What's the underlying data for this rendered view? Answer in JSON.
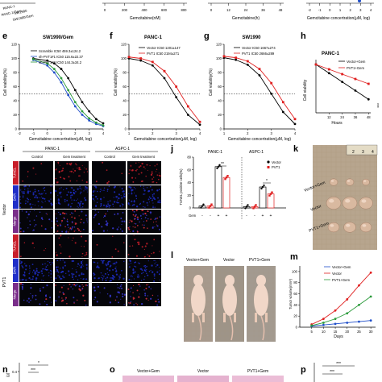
{
  "top_strip": {
    "legend_items": [
      "PANC-1",
      "PANC-1/Gem",
      "SW1990",
      "SW1990/Gem"
    ],
    "xlabel_b": "Gemcitabine(nM)",
    "ticks_b": [
      "0",
      "200",
      "400",
      "600",
      "800"
    ],
    "xlabel_c": "Gemcitabine(h)",
    "ticks_c": [
      "0",
      "12",
      "24",
      "36",
      "48"
    ],
    "xlabel_d": "Gemcitabine concertration(μM, log)",
    "ticks_d": [
      "-2",
      "-1",
      "0",
      "1",
      "2",
      "3",
      "4"
    ]
  },
  "panel_e": {
    "label": "e",
    "title": "SW1990/Gem",
    "ylabel": "Cell viability(%)",
    "xlabel": "Gemcitabine concertration(μM, log)",
    "legend": [
      "Scramble  IC50 459.3±124.2",
      "sh-PVT1#1  IC50 115.6±22.37",
      "sh-PVT1#2  IC50 144.3±34.2"
    ],
    "yticks": [
      "0",
      "20",
      "40",
      "60",
      "80",
      "100",
      "120"
    ],
    "xticks": [
      "-2",
      "-1",
      "0",
      "1",
      "2",
      "3",
      "4"
    ]
  },
  "panel_f": {
    "label": "f",
    "title": "PANC-1",
    "ylabel": "Cell viability(%)",
    "xlabel": "Gemcitabine concertration(μM, log)",
    "legend": [
      "Vector  IC50 1201±147",
      "PVT1  IC50 2194±271"
    ],
    "yticks": [
      "0",
      "20",
      "40",
      "60",
      "80",
      "100",
      "120"
    ],
    "xticks": [
      "1",
      "2",
      "3",
      "4"
    ]
  },
  "panel_g": {
    "label": "g",
    "title": "SW1990",
    "ylabel": "Cell viability(%)",
    "xlabel": "Gemcitabine concertration(μM, log)",
    "legend": [
      "Vector  IC50 1667±274",
      "PVT1  IC50 2666±289"
    ],
    "yticks": [
      "0",
      "20",
      "40",
      "60",
      "80",
      "100",
      "120"
    ],
    "xticks": [
      "1",
      "2",
      "3",
      "4"
    ]
  },
  "panel_h": {
    "label": "h",
    "title": "PANC-1",
    "ylabel": "Cell viability",
    "xlabel": "Hours",
    "legend": [
      "Vector+Gem",
      "PVT1+Gem"
    ],
    "xticks": [
      "12",
      "24",
      "36",
      "48"
    ],
    "sig": "***"
  },
  "panel_i": {
    "label": "i",
    "groups": [
      "PANC-1",
      "ASPC-1"
    ],
    "cols": [
      "Control",
      "Gem treatment",
      "Control",
      "Gem treatment"
    ],
    "rows": [
      "Vector",
      "PVT1"
    ],
    "channels": [
      "TUNEL",
      "DAPI",
      "Merge"
    ],
    "scale": "100μm"
  },
  "panel_j": {
    "label": "j",
    "ylabel": "TUNEL positive cells(%)",
    "groups": [
      "PANC-1",
      "ASPC-1"
    ],
    "legend": [
      "Vector",
      "PVT1"
    ],
    "row_label": "Gem",
    "signs": [
      "-",
      "-",
      "+",
      "+",
      "-",
      "-",
      "+",
      "+"
    ],
    "yticks": [
      "0",
      "20",
      "40",
      "60",
      "80"
    ],
    "sig1": "**",
    "sig2": "*"
  },
  "panel_k": {
    "label": "k",
    "rows": [
      "Vector+Gem",
      "Vector",
      "PVT1+Gem"
    ],
    "ruler": [
      "2",
      "3",
      "4"
    ]
  },
  "panel_l": {
    "label": "l",
    "cols": [
      "Vector+Gem",
      "Vector",
      "PVT1+Gem"
    ]
  },
  "panel_m": {
    "label": "m",
    "ylabel": "Tumor volume(mm³)",
    "xlabel": "Days",
    "legend": [
      "Vector+Gem",
      "Vector",
      "PVT1+Gem"
    ],
    "xticks": [
      "5",
      "10",
      "15",
      "20",
      "25",
      "30"
    ],
    "yticks": [
      "0",
      "20",
      "40",
      "60",
      "80",
      "100"
    ]
  },
  "bottom_strip": {
    "label_n": "n",
    "label_o": "o",
    "label_p": "p",
    "o_cols": [
      "Vector+Gem",
      "Vector",
      "PVT1+Gem"
    ],
    "n_sig": [
      "*",
      "***"
    ],
    "p_sig": [
      "***",
      "***"
    ],
    "n_yaxis": "(g)",
    "n_ytick": "0.4"
  },
  "chart_data": [
    {
      "type": "line",
      "panel": "e",
      "x": [
        -1,
        0,
        0.5,
        1,
        1.5,
        2,
        2.5,
        3,
        3.5,
        4
      ],
      "series": [
        {
          "name": "Scramble",
          "values": [
            100,
            97,
            93,
            85,
            72,
            55,
            38,
            25,
            14,
            8
          ],
          "color": "#000000"
        },
        {
          "name": "sh-PVT1#1",
          "values": [
            98,
            90,
            80,
            66,
            48,
            32,
            20,
            12,
            7,
            4
          ],
          "color": "#1f4ec9"
        },
        {
          "name": "sh-PVT1#2",
          "values": [
            99,
            93,
            85,
            72,
            55,
            38,
            25,
            15,
            9,
            5
          ],
          "color": "#2a9a3a"
        }
      ],
      "ylim": [
        0,
        120
      ],
      "xlim": [
        -2,
        4
      ]
    },
    {
      "type": "line",
      "panel": "f",
      "x": [
        1,
        1.5,
        2,
        2.5,
        3,
        3.5,
        4
      ],
      "series": [
        {
          "name": "Vector",
          "values": [
            100,
            97,
            90,
            72,
            45,
            20,
            6
          ],
          "color": "#000000"
        },
        {
          "name": "PVT1",
          "values": [
            102,
            100,
            95,
            82,
            60,
            32,
            10
          ],
          "color": "#e02020"
        }
      ],
      "ylim": [
        0,
        120
      ],
      "xlim": [
        1,
        4
      ]
    },
    {
      "type": "line",
      "panel": "g",
      "x": [
        1,
        1.5,
        2,
        2.5,
        3,
        3.5,
        4
      ],
      "series": [
        {
          "name": "Vector",
          "values": [
            101,
            98,
            91,
            76,
            50,
            24,
            7
          ],
          "color": "#000000"
        },
        {
          "name": "PVT1",
          "values": [
            103,
            101,
            96,
            85,
            65,
            38,
            14
          ],
          "color": "#e02020"
        }
      ],
      "ylim": [
        0,
        120
      ],
      "xlim": [
        1,
        4
      ]
    },
    {
      "type": "line",
      "panel": "h",
      "x": [
        0,
        12,
        24,
        36,
        48
      ],
      "series": [
        {
          "name": "Vector+Gem",
          "values": [
            1.0,
            0.82,
            0.64,
            0.46,
            0.28
          ],
          "color": "#000000"
        },
        {
          "name": "PVT1+Gem",
          "values": [
            1.0,
            0.9,
            0.8,
            0.7,
            0.6
          ],
          "color": "#e02020"
        }
      ],
      "ylim": [
        0,
        1.1
      ],
      "xlim": [
        0,
        50
      ]
    },
    {
      "type": "bar",
      "panel": "j",
      "categories": [
        "PANC-1 Vector -",
        "PANC-1 PVT1 -",
        "PANC-1 Vector +",
        "PANC-1 PVT1 +",
        "ASPC-1 Vector -",
        "ASPC-1 PVT1 -",
        "ASPC-1 Vector +",
        "ASPC-1 PVT1 +"
      ],
      "values": [
        3,
        3,
        65,
        48,
        2,
        2,
        33,
        22
      ],
      "ylim": [
        0,
        80
      ]
    },
    {
      "type": "line",
      "panel": "m",
      "x": [
        5,
        10,
        15,
        20,
        25,
        30
      ],
      "series": [
        {
          "name": "Vector+Gem",
          "values": [
            2,
            4,
            6,
            8,
            10,
            12
          ],
          "color": "#1f4ec9"
        },
        {
          "name": "Vector",
          "values": [
            5,
            15,
            30,
            50,
            75,
            98
          ],
          "color": "#e02020"
        },
        {
          "name": "PVT1+Gem",
          "values": [
            3,
            8,
            15,
            25,
            40,
            55
          ],
          "color": "#2a9a3a"
        }
      ],
      "ylim": [
        0,
        110
      ],
      "xlim": [
        0,
        32
      ]
    }
  ]
}
